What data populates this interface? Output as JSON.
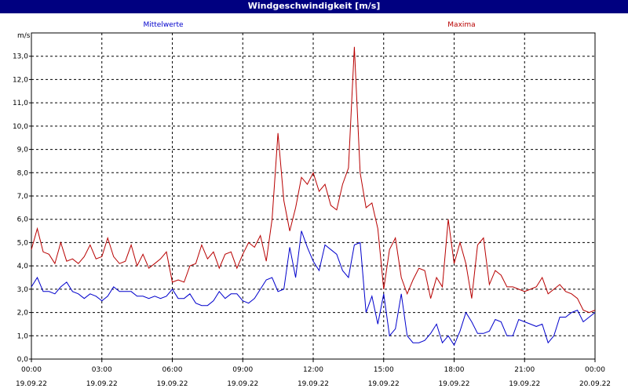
{
  "window": {
    "title": "Windgeschwindigkeit [m/s]"
  },
  "colors": {
    "titlebar": "#000080",
    "mean": "#0000cc",
    "max": "#b80000",
    "grid": "#000000"
  },
  "chart_data": {
    "type": "line",
    "title": "Windgeschwindigkeit [m/s]",
    "ylabel": "m/s",
    "ylim": [
      0,
      14
    ],
    "xlim": [
      0,
      24
    ],
    "grid": true,
    "y_ticks": [
      "0,0",
      "1,0",
      "2,0",
      "3,0",
      "4,0",
      "5,0",
      "6,0",
      "7,0",
      "8,0",
      "9,0",
      "10,0",
      "11,0",
      "12,0",
      "13,0"
    ],
    "x_ticks": [
      {
        "time": "00:00",
        "date": "19.09.22"
      },
      {
        "time": "03:00",
        "date": "19.09.22"
      },
      {
        "time": "06:00",
        "date": "19.09.22"
      },
      {
        "time": "09:00",
        "date": "19.09.22"
      },
      {
        "time": "12:00",
        "date": "19.09.22"
      },
      {
        "time": "15:00",
        "date": "19.09.22"
      },
      {
        "time": "18:00",
        "date": "19.09.22"
      },
      {
        "time": "21:00",
        "date": "19.09.22"
      },
      {
        "time": "00:00",
        "date": "20.09.22"
      }
    ],
    "legend": [
      "Mittelwerte",
      "Maxima"
    ],
    "series": [
      {
        "name": "Mittelwerte",
        "color": "#0000cc",
        "x": [
          0.0,
          0.25,
          0.5,
          0.75,
          1.0,
          1.25,
          1.5,
          1.75,
          2.0,
          2.25,
          2.5,
          2.75,
          3.0,
          3.25,
          3.5,
          3.75,
          4.0,
          4.25,
          4.5,
          4.75,
          5.0,
          5.25,
          5.5,
          5.75,
          6.0,
          6.25,
          6.5,
          6.75,
          7.0,
          7.25,
          7.5,
          7.75,
          8.0,
          8.25,
          8.5,
          8.75,
          9.0,
          9.25,
          9.5,
          9.75,
          10.0,
          10.25,
          10.5,
          10.75,
          11.0,
          11.25,
          11.5,
          11.75,
          12.0,
          12.25,
          12.5,
          12.75,
          13.0,
          13.25,
          13.5,
          13.75,
          14.0,
          14.25,
          14.5,
          14.75,
          15.0,
          15.25,
          15.5,
          15.75,
          16.0,
          16.25,
          16.5,
          16.75,
          17.0,
          17.25,
          17.5,
          17.75,
          18.0,
          18.25,
          18.5,
          18.75,
          19.0,
          19.25,
          19.5,
          19.75,
          20.0,
          20.25,
          20.5,
          20.75,
          21.0,
          21.25,
          21.5,
          21.75,
          22.0,
          22.25,
          22.5,
          22.75,
          23.0,
          23.25,
          23.5,
          23.75,
          24.0
        ],
        "values": [
          3.1,
          3.5,
          2.9,
          2.9,
          2.8,
          3.1,
          3.3,
          2.9,
          2.8,
          2.6,
          2.8,
          2.7,
          2.5,
          2.7,
          3.1,
          2.9,
          2.9,
          2.9,
          2.7,
          2.7,
          2.6,
          2.7,
          2.6,
          2.7,
          3.0,
          2.6,
          2.6,
          2.8,
          2.4,
          2.3,
          2.3,
          2.5,
          2.9,
          2.6,
          2.8,
          2.8,
          2.5,
          2.4,
          2.6,
          3.0,
          3.4,
          3.5,
          2.9,
          3.0,
          4.8,
          3.5,
          5.5,
          4.8,
          4.2,
          3.8,
          4.9,
          4.7,
          4.5,
          3.8,
          3.5,
          4.9,
          5.0,
          2.0,
          2.7,
          1.5,
          2.8,
          1.0,
          1.3,
          2.8,
          1.0,
          0.7,
          0.7,
          0.8,
          1.1,
          1.5,
          0.7,
          1.0,
          0.6,
          1.2,
          2.0,
          1.6,
          1.1,
          1.1,
          1.2,
          1.7,
          1.6,
          1.0,
          1.0,
          1.7,
          1.6,
          1.5,
          1.4,
          1.5,
          0.7,
          1.0,
          1.8,
          1.8,
          2.0,
          2.1,
          1.6,
          1.8,
          2.0
        ]
      },
      {
        "name": "Maxima",
        "color": "#b80000",
        "x": [
          0.0,
          0.25,
          0.5,
          0.75,
          1.0,
          1.25,
          1.5,
          1.75,
          2.0,
          2.25,
          2.5,
          2.75,
          3.0,
          3.25,
          3.5,
          3.75,
          4.0,
          4.25,
          4.5,
          4.75,
          5.0,
          5.25,
          5.5,
          5.75,
          6.0,
          6.25,
          6.5,
          6.75,
          7.0,
          7.25,
          7.5,
          7.75,
          8.0,
          8.25,
          8.5,
          8.75,
          9.0,
          9.25,
          9.5,
          9.75,
          10.0,
          10.25,
          10.5,
          10.75,
          11.0,
          11.25,
          11.5,
          11.75,
          12.0,
          12.25,
          12.5,
          12.75,
          13.0,
          13.25,
          13.5,
          13.75,
          14.0,
          14.25,
          14.5,
          14.75,
          15.0,
          15.25,
          15.5,
          15.75,
          16.0,
          16.25,
          16.5,
          16.75,
          17.0,
          17.25,
          17.5,
          17.75,
          18.0,
          18.25,
          18.5,
          18.75,
          19.0,
          19.25,
          19.5,
          19.75,
          20.0,
          20.25,
          20.5,
          20.75,
          21.0,
          21.25,
          21.5,
          21.75,
          22.0,
          22.25,
          22.5,
          22.75,
          23.0,
          23.25,
          23.5,
          23.75,
          24.0
        ],
        "values": [
          4.7,
          5.6,
          4.6,
          4.5,
          4.1,
          5.0,
          4.2,
          4.3,
          4.1,
          4.4,
          4.9,
          4.3,
          4.4,
          5.2,
          4.4,
          4.1,
          4.2,
          4.9,
          4.0,
          4.5,
          3.9,
          4.1,
          4.3,
          4.6,
          3.3,
          3.4,
          3.3,
          4.0,
          4.1,
          4.9,
          4.3,
          4.6,
          3.9,
          4.5,
          4.6,
          3.9,
          4.5,
          5.0,
          4.8,
          5.3,
          4.2,
          6.0,
          9.7,
          6.8,
          5.5,
          6.5,
          7.8,
          7.5,
          8.0,
          7.2,
          7.5,
          6.6,
          6.4,
          7.5,
          8.2,
          13.4,
          8.0,
          6.5,
          6.7,
          5.6,
          3.0,
          4.7,
          5.2,
          3.5,
          2.8,
          3.4,
          3.9,
          3.8,
          2.6,
          3.5,
          3.1,
          6.0,
          4.1,
          5.0,
          4.1,
          2.6,
          4.9,
          5.2,
          3.2,
          3.8,
          3.6,
          3.1,
          3.1,
          3.0,
          2.9,
          3.0,
          3.1,
          3.5,
          2.8,
          3.0,
          3.2,
          2.9,
          2.8,
          2.6,
          2.1,
          2.0,
          2.1
        ]
      }
    ]
  }
}
